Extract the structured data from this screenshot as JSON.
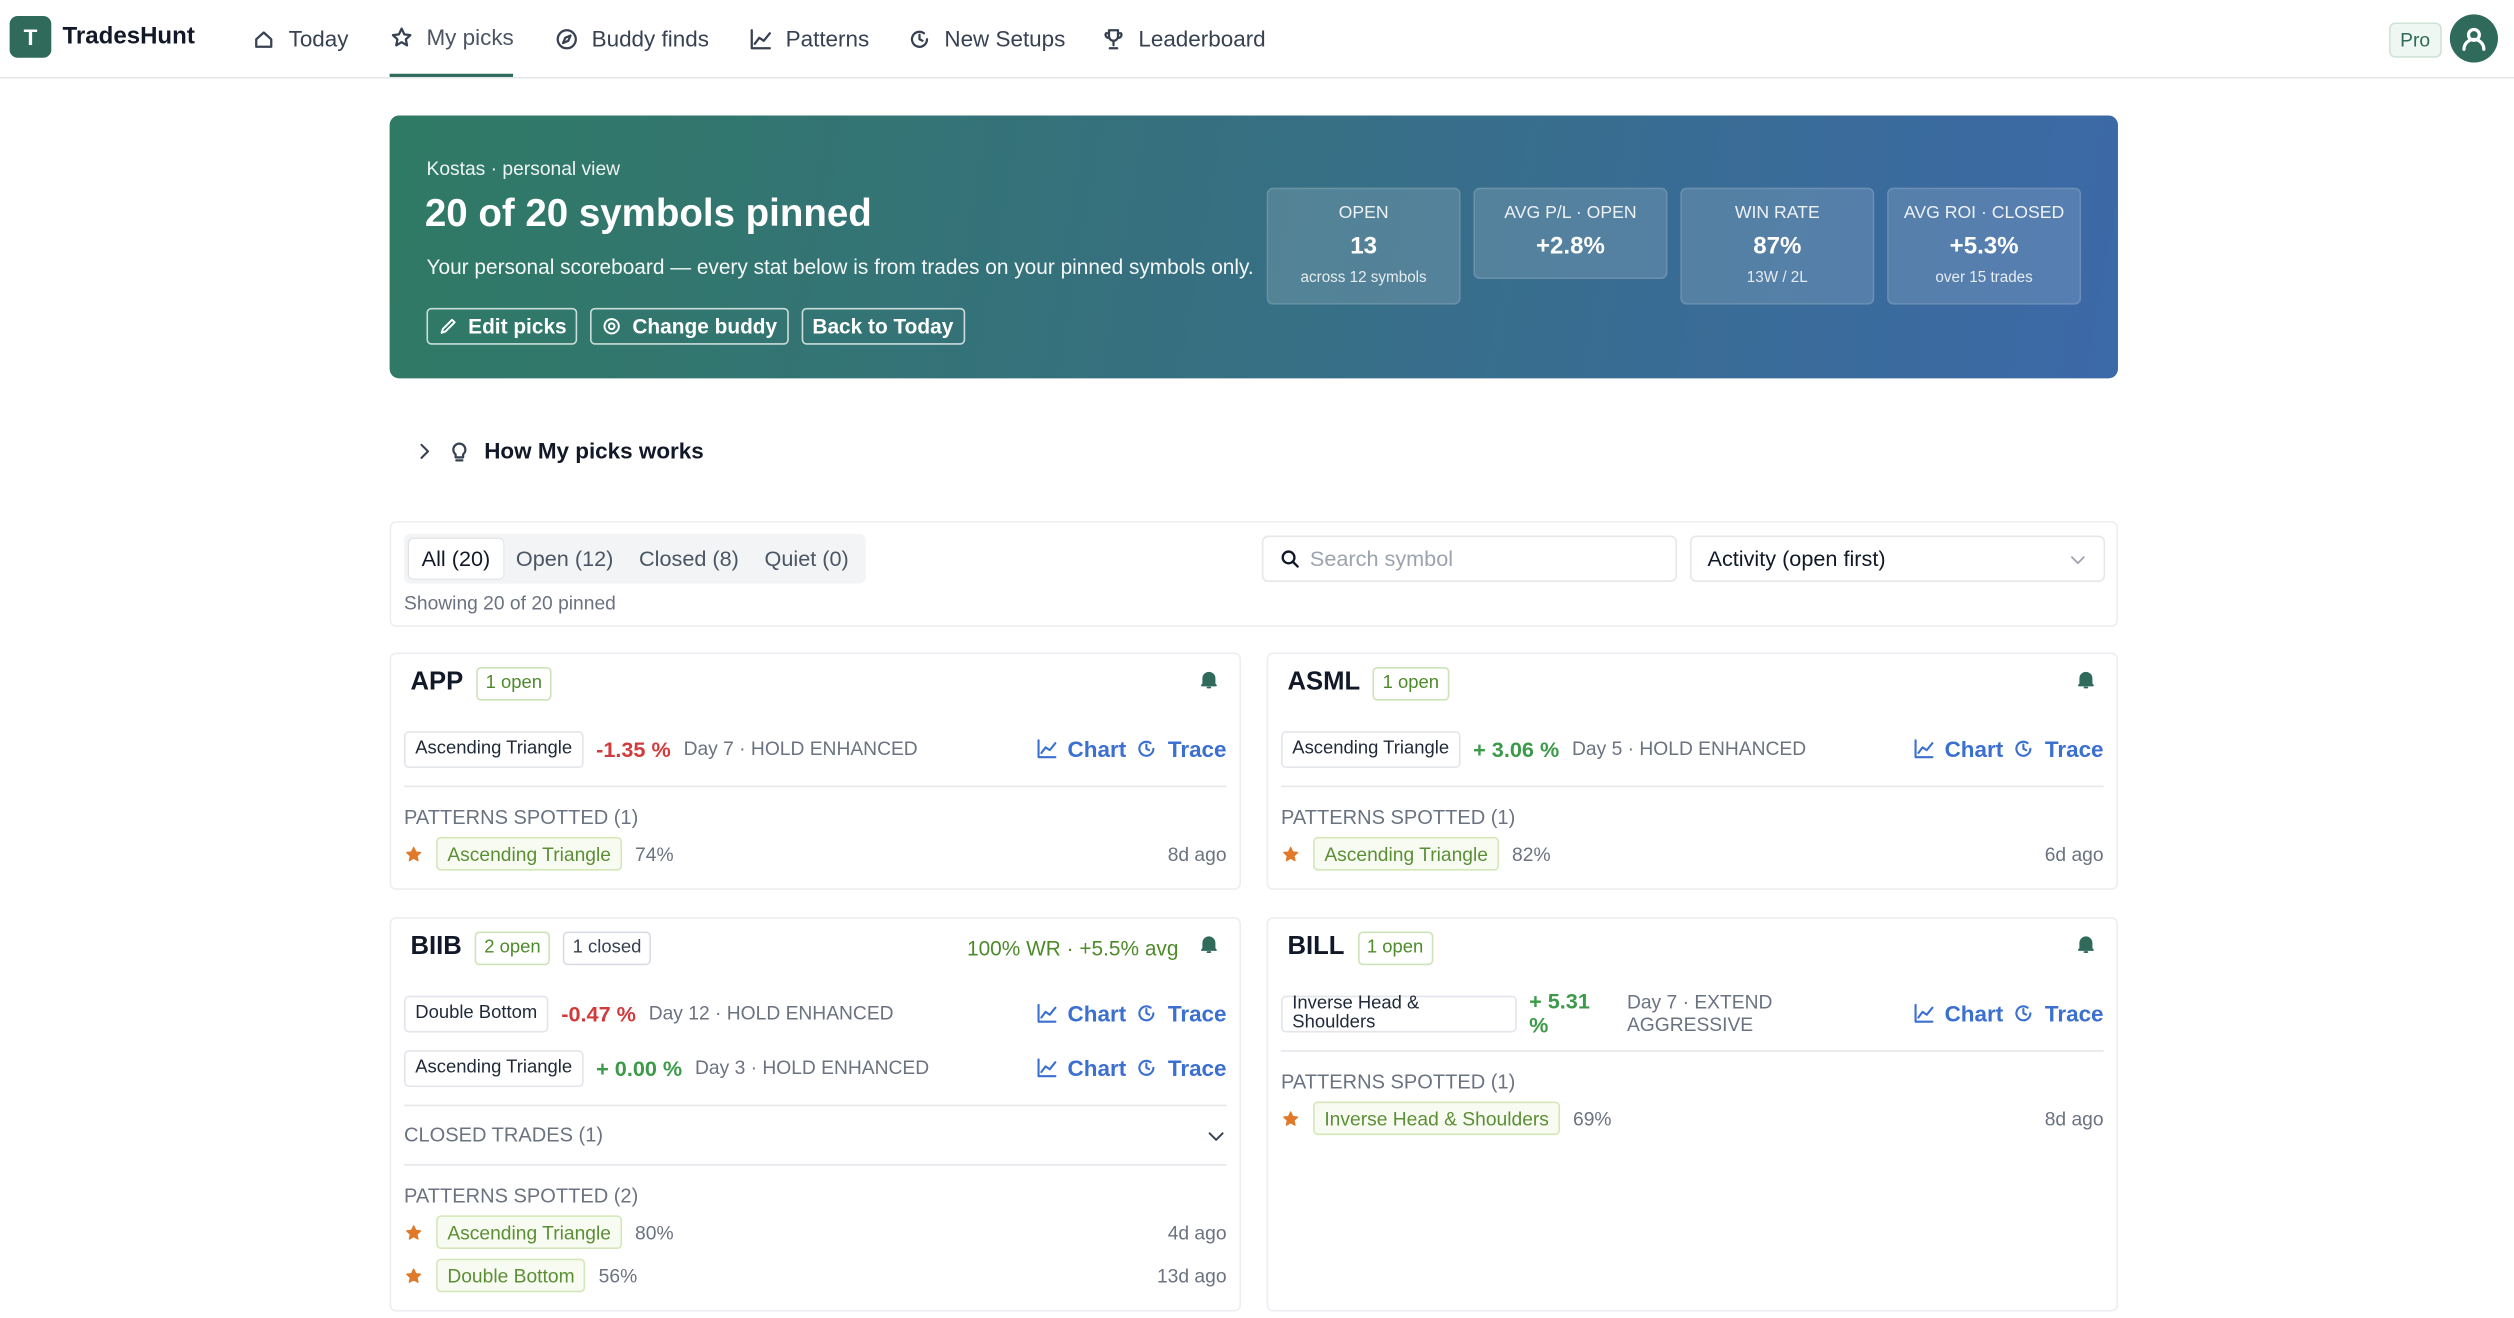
{
  "nav": {
    "logo": "T",
    "brand": "TradesHunt",
    "items": [
      "Today",
      "My picks",
      "Buddy finds",
      "Patterns",
      "New Setups",
      "Leaderboard"
    ],
    "active": 1,
    "badge": "Pro"
  },
  "hero": {
    "eyebrow": "Kostas · personal view",
    "title": "20 of 20 symbols pinned",
    "subtitle": "Your personal scoreboard — every stat below is from trades on your pinned symbols only.",
    "buttons": [
      "Edit picks",
      "Change buddy",
      "Back to Today"
    ],
    "stats": [
      {
        "label": "OPEN",
        "value": "13",
        "note": "across 12 symbols"
      },
      {
        "label": "AVG P/L · OPEN",
        "value": "+2.8%"
      },
      {
        "label": "WIN RATE",
        "value": "87%",
        "note": "13W / 2L"
      },
      {
        "label": "AVG ROI · CLOSED",
        "value": "+5.3%",
        "note": "over 15 trades"
      }
    ]
  },
  "how": "How My picks works",
  "filters": {
    "tabs": [
      "All (20)",
      "Open (12)",
      "Closed (8)",
      "Quiet (0)"
    ],
    "active": 0,
    "count": "Showing 20 of 20 pinned",
    "search_placeholder": "Search symbol",
    "sort": "Activity (open first)"
  },
  "trade_actions": [
    "Chart",
    "Trace"
  ],
  "cards": [
    {
      "symbol": "APP",
      "badges": [
        "1 open"
      ],
      "trades": [
        {
          "pattern": "Ascending Triangle",
          "change": "-1.35 %",
          "status": "Day 7 · HOLD ENHANCED"
        }
      ],
      "patterns_title": "PATTERNS SPOTTED (1)",
      "patterns": [
        {
          "name": "Ascending Triangle",
          "score": "74%",
          "age": "8d ago"
        }
      ]
    },
    {
      "symbol": "ASML",
      "badges": [
        "1 open"
      ],
      "trades": [
        {
          "pattern": "Ascending Triangle",
          "change": "+ 3.06 %",
          "status": "Day 5 · HOLD ENHANCED"
        }
      ],
      "patterns_title": "PATTERNS SPOTTED (1)",
      "patterns": [
        {
          "name": "Ascending Triangle",
          "score": "82%",
          "age": "6d ago"
        }
      ]
    },
    {
      "symbol": "BIIB",
      "badges": [
        "2 open",
        "1 closed"
      ],
      "summary": "100% WR · +5.5% avg",
      "trades": [
        {
          "pattern": "Double Bottom",
          "change": "-0.47 %",
          "status": "Day 12 · HOLD ENHANCED"
        },
        {
          "pattern": "Ascending Triangle",
          "change": "+ 0.00 %",
          "status": "Day 3 · HOLD ENHANCED"
        }
      ],
      "closed": "CLOSED TRADES (1)",
      "patterns_title": "PATTERNS SPOTTED (2)",
      "patterns": [
        {
          "name": "Ascending Triangle",
          "score": "80%",
          "age": "4d ago"
        },
        {
          "name": "Double Bottom",
          "score": "56%",
          "age": "13d ago"
        }
      ]
    },
    {
      "symbol": "BILL",
      "badges": [
        "1 open"
      ],
      "trades": [
        {
          "pattern": "Inverse Head & Shoulders",
          "change": "+ 5.31 %",
          "status": "Day 7 · EXTEND AGGRESSIVE"
        }
      ],
      "patterns_title": "PATTERNS SPOTTED (1)",
      "patterns": [
        {
          "name": "Inverse Head & Shoulders",
          "score": "69%",
          "age": "8d ago"
        }
      ]
    }
  ]
}
